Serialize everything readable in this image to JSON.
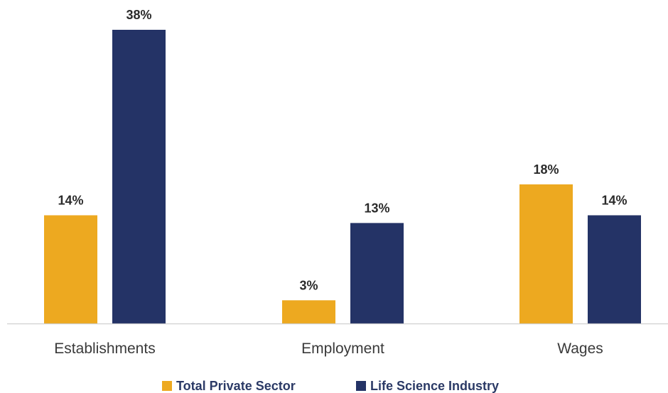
{
  "chart_data": {
    "type": "bar",
    "categories": [
      "Establishments",
      "Employment",
      "Wages"
    ],
    "series": [
      {
        "name": "Total Private Sector",
        "values": [
          14,
          3,
          18
        ],
        "labels": [
          "14%",
          "3%",
          "18%"
        ],
        "color": "#EDA920"
      },
      {
        "name": "Life Science Industry",
        "values": [
          38,
          13,
          14
        ],
        "labels": [
          "38%",
          "13%",
          "14%"
        ],
        "color": "#243366"
      }
    ],
    "unit": "%",
    "ylim": [
      0,
      38
    ],
    "grid": false,
    "legend_position": "bottom"
  }
}
